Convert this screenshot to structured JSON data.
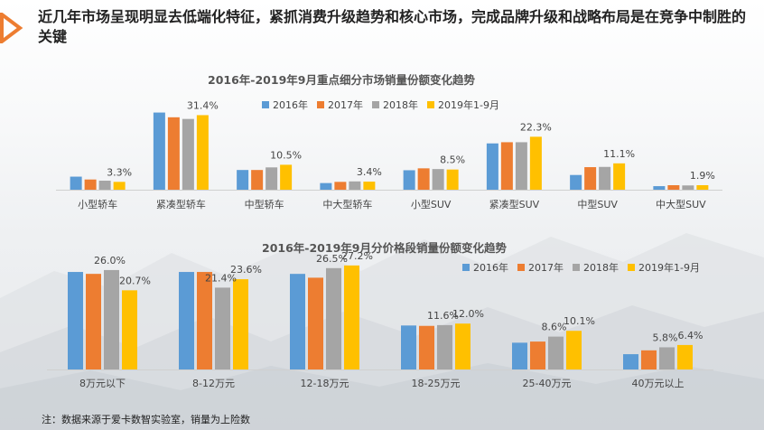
{
  "headline": "近几年市场呈现明显去低端化特征，紧抓消费升级趋势和核心市场，完成品牌升级和战略布局是在竞争中制胜的关键",
  "colors": {
    "s2016": "#5B9BD5",
    "s2017": "#ED7D31",
    "s2018": "#A5A5A5",
    "s2019": "#FFC000",
    "accent": "#ED7D31"
  },
  "chart_data": [
    {
      "type": "bar",
      "title": "2016年-2019年9月重点细分市场销量份额变化趋势",
      "legend_position": "top-center",
      "categories": [
        "小型轿车",
        "紧凑型轿车",
        "中型轿车",
        "中大型轿车",
        "小型SUV",
        "紧凑型SUV",
        "中型SUV",
        "中大型SUV"
      ],
      "series": [
        {
          "name": "2016年",
          "values": [
            5.5,
            32.5,
            8.3,
            2.8,
            8.2,
            19.5,
            6.2,
            1.5
          ]
        },
        {
          "name": "2017年",
          "values": [
            4.3,
            30.5,
            8.3,
            3.3,
            9.0,
            20.0,
            9.5,
            1.9
          ]
        },
        {
          "name": "2018年",
          "values": [
            3.8,
            29.8,
            9.4,
            3.5,
            8.7,
            20.0,
            9.6,
            1.8
          ]
        },
        {
          "name": "2019年1-9月",
          "values": [
            3.3,
            31.4,
            10.5,
            3.4,
            8.5,
            22.3,
            11.1,
            1.9
          ]
        }
      ],
      "data_labels": [
        "3.3%",
        "31.4%",
        "10.5%",
        "3.4%",
        "8.5%",
        "22.3%",
        "11.1%",
        "1.9%"
      ],
      "ylim": [
        0,
        35
      ],
      "grid": false
    },
    {
      "type": "bar",
      "title": "2016年-2019年9月分价格段销量份额变化趋势",
      "legend_position": "top-right",
      "categories": [
        "8万元以下",
        "8-12万元",
        "12-18万元",
        "18-25万元",
        "25-40万元",
        "40万元以上"
      ],
      "series": [
        {
          "name": "2016年",
          "values": [
            25.5,
            25.5,
            25.0,
            11.5,
            7.0,
            4.0
          ]
        },
        {
          "name": "2017年",
          "values": [
            25.0,
            25.5,
            24.0,
            11.4,
            7.3,
            5.0
          ]
        },
        {
          "name": "2018年",
          "values": [
            26.0,
            21.4,
            26.5,
            11.6,
            8.6,
            5.8
          ]
        },
        {
          "name": "2019年1-9月",
          "values": [
            20.7,
            23.6,
            27.2,
            12.0,
            10.1,
            6.4
          ]
        }
      ],
      "data_labels": [
        {
          "category": "8万元以下",
          "labels": [
            {
              "series": 2,
              "text": "26.0%"
            },
            {
              "series": 3,
              "text": "20.7%"
            }
          ]
        },
        {
          "category": "8-12万元",
          "labels": [
            {
              "series": 2,
              "text": "21.4%"
            },
            {
              "series": 3,
              "text": "23.6%"
            }
          ]
        },
        {
          "category": "12-18万元",
          "labels": [
            {
              "series": 2,
              "text": "26.5%"
            },
            {
              "series": 3,
              "text": "27.2%"
            }
          ]
        },
        {
          "category": "18-25万元",
          "labels": [
            {
              "series": 2,
              "text": "11.6%"
            },
            {
              "series": 3,
              "text": "12.0%"
            }
          ]
        },
        {
          "category": "25-40万元",
          "labels": [
            {
              "series": 2,
              "text": "8.6%"
            },
            {
              "series": 3,
              "text": "10.1%"
            }
          ]
        },
        {
          "category": "40万元以上",
          "labels": [
            {
              "series": 2,
              "text": "5.8%"
            },
            {
              "series": 3,
              "text": "6.4%"
            }
          ]
        }
      ],
      "ylim": [
        0,
        30
      ],
      "grid": false
    }
  ],
  "footnote": "注：数据来源于爱卡数智实验室，销量为上险数"
}
